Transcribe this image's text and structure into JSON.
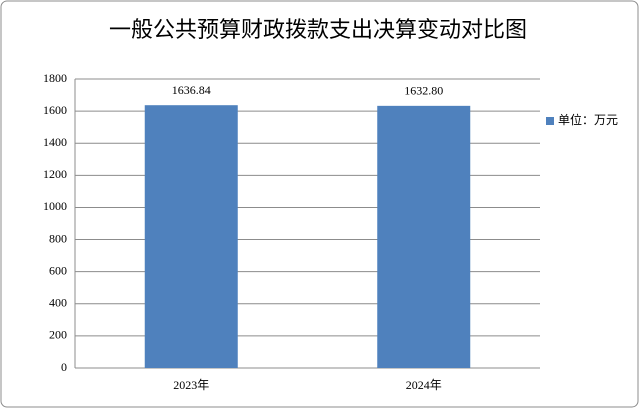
{
  "chart_data": {
    "type": "bar",
    "title": "一般公共预算财政拨款支出决算变动对比图",
    "categories": [
      "2023年",
      "2024年"
    ],
    "series": [
      {
        "name": "单位：万元",
        "color": "#4f81bd",
        "values": [
          1636.84,
          1632.8
        ],
        "value_labels": [
          "1636.84",
          "1632.80"
        ]
      }
    ],
    "ylim": [
      0,
      1800
    ],
    "yticks": [
      0,
      200,
      400,
      600,
      800,
      1000,
      1200,
      1400,
      1600,
      1800
    ],
    "grid": true,
    "legend": "right"
  }
}
